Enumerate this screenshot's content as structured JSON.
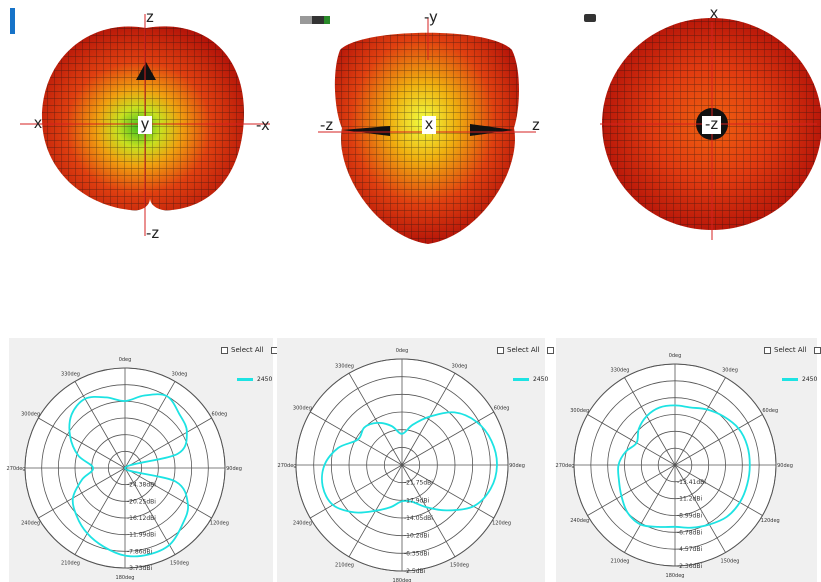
{
  "views_3d": [
    {
      "axes": {
        "top": "z",
        "left": "x",
        "right": "-x",
        "bottom": "-z"
      },
      "center": "y"
    },
    {
      "axes": {
        "top": "-y",
        "left": "-z",
        "right": "z",
        "bottom": ""
      },
      "center": "x"
    },
    {
      "axes": {
        "top": "x",
        "left": "",
        "right": "",
        "bottom": ""
      },
      "center": "-z"
    }
  ],
  "select_all_label": "Select All",
  "colors": {
    "trace": "#1de3e3",
    "grid": "#555555",
    "panel_bg": "#f0f0f0"
  },
  "chart_data": [
    {
      "type": "polar",
      "angle_labels": [
        "0deg",
        "30deg",
        "60deg",
        "90deg",
        "120deg",
        "150deg",
        "180deg",
        "210deg",
        "240deg",
        "270deg",
        "300deg",
        "330deg"
      ],
      "radial_labels": [
        "-24.38dBi",
        "-20.25dBi",
        "-16.12dBi",
        "-11.99dBi",
        "-7.86dBi",
        "-3.73dBi"
      ],
      "rlim": [
        -28.5,
        -3.73
      ],
      "series": [
        {
          "name": "2450",
          "angles_deg": [
            0,
            15,
            30,
            45,
            60,
            75,
            90,
            105,
            120,
            135,
            150,
            165,
            180,
            195,
            210,
            225,
            240,
            255,
            270,
            285,
            300,
            315,
            330,
            345
          ],
          "values": [
            -11.9,
            -9.9,
            -7.9,
            -9.5,
            -10.8,
            -15,
            -28.5,
            -15.5,
            -10.5,
            -8.5,
            -6.5,
            -6.3,
            -6.8,
            -8.3,
            -9.8,
            -11.6,
            -13.6,
            -17.5,
            -20.6,
            -16.5,
            -12.8,
            -9.8,
            -8.7,
            -10.4
          ]
        }
      ]
    },
    {
      "type": "polar",
      "angle_labels": [
        "0deg",
        "30deg",
        "60deg",
        "90deg",
        "120deg",
        "150deg",
        "180deg",
        "210deg",
        "240deg",
        "270deg",
        "300deg",
        "330deg"
      ],
      "radial_labels": [
        "-21.75dBi",
        "-17.9dBi",
        "-14.05dBi",
        "-10.2dBi",
        "-6.35dBi",
        "-2.5dBi"
      ],
      "rlim": [
        -25.6,
        -2.5
      ],
      "series": [
        {
          "name": "2450",
          "angles_deg": [
            0,
            15,
            30,
            45,
            60,
            75,
            90,
            105,
            120,
            135,
            150,
            165,
            180,
            195,
            210,
            225,
            240,
            255,
            270,
            285,
            300,
            315,
            330,
            345
          ],
          "values": [
            -18.8,
            -16.5,
            -13.4,
            -9.4,
            -6.8,
            -5.4,
            -4.9,
            -5.6,
            -7.6,
            -11.6,
            -15,
            -17.3,
            -17.7,
            -16.1,
            -14.1,
            -11,
            -8.2,
            -7.7,
            -8.7,
            -11.2,
            -14.5,
            -14,
            -15,
            -16.8
          ]
        }
      ]
    },
    {
      "type": "polar",
      "angle_labels": [
        "0deg",
        "30deg",
        "60deg",
        "90deg",
        "120deg",
        "150deg",
        "180deg",
        "210deg",
        "240deg",
        "270deg",
        "300deg",
        "330deg"
      ],
      "radial_labels": [
        "-13.41dBi",
        "-11.2dBi",
        "-8.99dBi",
        "-6.78dBi",
        "-4.57dBi",
        "-2.36dBi"
      ],
      "rlim": [
        -15.62,
        -2.36
      ],
      "series": [
        {
          "name": "2450",
          "angles_deg": [
            0,
            15,
            30,
            45,
            60,
            75,
            90,
            105,
            120,
            135,
            150,
            165,
            180,
            195,
            210,
            225,
            240,
            255,
            270,
            285,
            300,
            315,
            330,
            345
          ],
          "values": [
            -7.8,
            -7.8,
            -7.2,
            -6.6,
            -6,
            -5.8,
            -5.8,
            -5.8,
            -5.8,
            -6,
            -6.6,
            -7.1,
            -7.5,
            -7.2,
            -6.6,
            -6.8,
            -7.5,
            -8,
            -8.2,
            -8.9,
            -9.8,
            -8.9,
            -8.2,
            -7.8
          ]
        }
      ]
    }
  ]
}
